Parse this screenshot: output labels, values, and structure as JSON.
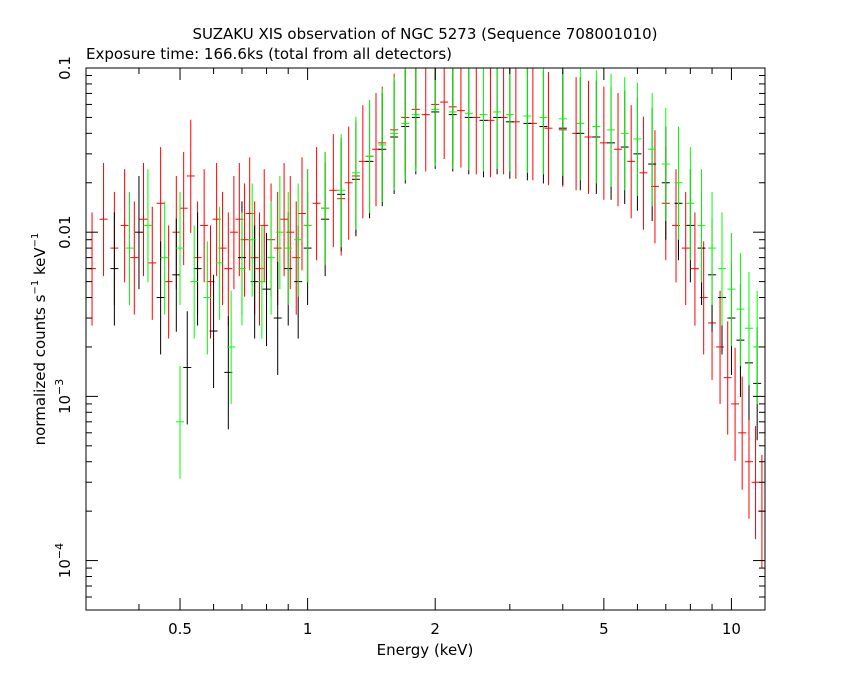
{
  "chart_data": {
    "type": "scatter",
    "title": "SUZAKU XIS observation of NGC 5273 (Sequence 708001010)",
    "subtitle": "Exposure time: 166.6ks (total from all detectors)",
    "xlabel": "Energy (keV)",
    "ylabel": {
      "main": "normalized counts s",
      "sup1": "−1",
      "mid": " keV",
      "sup2": "−1"
    },
    "x_scale": "log",
    "y_scale": "log",
    "xlim": [
      0.3,
      12.0
    ],
    "ylim": [
      5e-05,
      0.1
    ],
    "x_ticks": [
      {
        "value": 0.5,
        "label": "0.5"
      },
      {
        "value": 1,
        "label": "1"
      },
      {
        "value": 2,
        "label": "2"
      },
      {
        "value": 5,
        "label": "5"
      },
      {
        "value": 10,
        "label": "10"
      }
    ],
    "y_ticks": [
      {
        "value": 0.1,
        "label": "0.1"
      },
      {
        "value": 0.01,
        "label": "0.01"
      },
      {
        "value": 0.001,
        "base": "10",
        "exp": "−3"
      },
      {
        "value": 0.0001,
        "base": "10",
        "exp": "−4"
      }
    ],
    "grid": false,
    "legend": "none",
    "series": [
      {
        "color": "#ff0000",
        "points": [
          [
            0.31,
            0.006
          ],
          [
            0.33,
            0.012
          ],
          [
            0.35,
            0.008
          ],
          [
            0.37,
            0.011
          ],
          [
            0.39,
            0.007
          ],
          [
            0.41,
            0.012
          ],
          [
            0.43,
            0.0065
          ],
          [
            0.45,
            0.015
          ],
          [
            0.47,
            0.005
          ],
          [
            0.49,
            0.01
          ],
          [
            0.51,
            0.014
          ],
          [
            0.53,
            0.022
          ],
          [
            0.55,
            0.007
          ],
          [
            0.57,
            0.011
          ],
          [
            0.59,
            0.005
          ],
          [
            0.61,
            0.012
          ],
          [
            0.63,
            0.008
          ],
          [
            0.65,
            0.006
          ],
          [
            0.67,
            0.01
          ],
          [
            0.69,
            0.012
          ],
          [
            0.71,
            0.009
          ],
          [
            0.73,
            0.013
          ],
          [
            0.75,
            0.007
          ],
          [
            0.77,
            0.006
          ],
          [
            0.79,
            0.011
          ],
          [
            0.82,
            0.009
          ],
          [
            0.85,
            0.008
          ],
          [
            0.88,
            0.012
          ],
          [
            0.91,
            0.01
          ],
          [
            0.94,
            0.007
          ],
          [
            0.97,
            0.013
          ],
          [
            1.0,
            0.011
          ],
          [
            1.05,
            0.015
          ],
          [
            1.1,
            0.014
          ],
          [
            1.15,
            0.018
          ],
          [
            1.2,
            0.016
          ],
          [
            1.25,
            0.02
          ],
          [
            1.3,
            0.022
          ],
          [
            1.35,
            0.027
          ],
          [
            1.4,
            0.029
          ],
          [
            1.45,
            0.032
          ],
          [
            1.5,
            0.035
          ],
          [
            1.6,
            0.042
          ],
          [
            1.7,
            0.05
          ],
          [
            1.8,
            0.056
          ],
          [
            1.9,
            0.052
          ],
          [
            2.0,
            0.06
          ],
          [
            2.1,
            0.062
          ],
          [
            2.2,
            0.058
          ],
          [
            2.3,
            0.055
          ],
          [
            2.5,
            0.05
          ],
          [
            2.7,
            0.048
          ],
          [
            2.9,
            0.05
          ],
          [
            3.1,
            0.047
          ],
          [
            3.4,
            0.046
          ],
          [
            3.7,
            0.043
          ],
          [
            4.0,
            0.042
          ],
          [
            4.3,
            0.04
          ],
          [
            4.6,
            0.038
          ],
          [
            5.0,
            0.035
          ],
          [
            5.4,
            0.032
          ],
          [
            5.8,
            0.027
          ],
          [
            6.2,
            0.023
          ],
          [
            6.6,
            0.019
          ],
          [
            7.0,
            0.015
          ],
          [
            7.4,
            0.011
          ],
          [
            7.8,
            0.008
          ],
          [
            8.2,
            0.006
          ],
          [
            8.6,
            0.004
          ],
          [
            9.0,
            0.0028
          ],
          [
            9.4,
            0.002
          ],
          [
            9.8,
            0.0013
          ],
          [
            10.2,
            0.0009
          ],
          [
            10.6,
            0.0006
          ],
          [
            11.0,
            0.0004
          ],
          [
            11.4,
            0.0003
          ],
          [
            11.8,
            0.0002
          ]
        ]
      },
      {
        "color": "#000000",
        "points": [
          [
            0.35,
            0.006
          ],
          [
            0.4,
            0.01
          ],
          [
            0.45,
            0.004
          ],
          [
            0.49,
            0.0055
          ],
          [
            0.52,
            0.0015
          ],
          [
            0.55,
            0.006
          ],
          [
            0.6,
            0.0025
          ],
          [
            0.65,
            0.0014
          ],
          [
            0.7,
            0.007
          ],
          [
            0.75,
            0.005
          ],
          [
            0.8,
            0.0045
          ],
          [
            0.85,
            0.003
          ],
          [
            0.9,
            0.006
          ],
          [
            0.95,
            0.005
          ],
          [
            1.0,
            0.008
          ],
          [
            1.1,
            0.012
          ],
          [
            1.2,
            0.017
          ],
          [
            1.3,
            0.021
          ],
          [
            1.4,
            0.027
          ],
          [
            1.5,
            0.032
          ],
          [
            1.6,
            0.038
          ],
          [
            1.7,
            0.044
          ],
          [
            1.8,
            0.05
          ],
          [
            2.0,
            0.054
          ],
          [
            2.2,
            0.052
          ],
          [
            2.4,
            0.05
          ],
          [
            2.6,
            0.048
          ],
          [
            2.8,
            0.05
          ],
          [
            3.0,
            0.047
          ],
          [
            3.3,
            0.046
          ],
          [
            3.6,
            0.044
          ],
          [
            4.0,
            0.043
          ],
          [
            4.4,
            0.04
          ],
          [
            4.8,
            0.038
          ],
          [
            5.2,
            0.035
          ],
          [
            5.6,
            0.033
          ],
          [
            6.0,
            0.03
          ],
          [
            6.5,
            0.026
          ],
          [
            7.0,
            0.02
          ],
          [
            7.5,
            0.015
          ],
          [
            8.0,
            0.011
          ],
          [
            8.5,
            0.008
          ],
          [
            9.0,
            0.0055
          ],
          [
            9.5,
            0.004
          ],
          [
            10.0,
            0.003
          ],
          [
            10.5,
            0.0022
          ],
          [
            11.0,
            0.0016
          ],
          [
            11.5,
            0.0012
          ]
        ]
      },
      {
        "color": "#00ff00",
        "points": [
          [
            0.38,
            0.008
          ],
          [
            0.42,
            0.011
          ],
          [
            0.46,
            0.007
          ],
          [
            0.5,
            0.008
          ],
          [
            0.5,
            0.0007
          ],
          [
            0.54,
            0.005
          ],
          [
            0.58,
            0.004
          ],
          [
            0.62,
            0.0065
          ],
          [
            0.66,
            0.002
          ],
          [
            0.7,
            0.006
          ],
          [
            0.74,
            0.009
          ],
          [
            0.78,
            0.005
          ],
          [
            0.82,
            0.007
          ],
          [
            0.86,
            0.01
          ],
          [
            0.9,
            0.008
          ],
          [
            0.95,
            0.009
          ],
          [
            1.0,
            0.011
          ],
          [
            1.1,
            0.014
          ],
          [
            1.2,
            0.018
          ],
          [
            1.3,
            0.023
          ],
          [
            1.4,
            0.029
          ],
          [
            1.5,
            0.034
          ],
          [
            1.6,
            0.04
          ],
          [
            1.7,
            0.046
          ],
          [
            1.8,
            0.052
          ],
          [
            2.0,
            0.056
          ],
          [
            2.2,
            0.054
          ],
          [
            2.4,
            0.053
          ],
          [
            2.6,
            0.052
          ],
          [
            2.8,
            0.054
          ],
          [
            3.0,
            0.052
          ],
          [
            3.3,
            0.051
          ],
          [
            3.6,
            0.05
          ],
          [
            4.0,
            0.049
          ],
          [
            4.4,
            0.046
          ],
          [
            4.8,
            0.044
          ],
          [
            5.2,
            0.042
          ],
          [
            5.6,
            0.04
          ],
          [
            6.0,
            0.037
          ],
          [
            6.5,
            0.032
          ],
          [
            7.0,
            0.026
          ],
          [
            7.5,
            0.02
          ],
          [
            8.0,
            0.015
          ],
          [
            8.5,
            0.011
          ],
          [
            9.0,
            0.008
          ],
          [
            9.5,
            0.006
          ],
          [
            10.0,
            0.0045
          ],
          [
            10.5,
            0.0034
          ],
          [
            11.0,
            0.0026
          ],
          [
            11.5,
            0.002
          ]
        ]
      }
    ]
  }
}
